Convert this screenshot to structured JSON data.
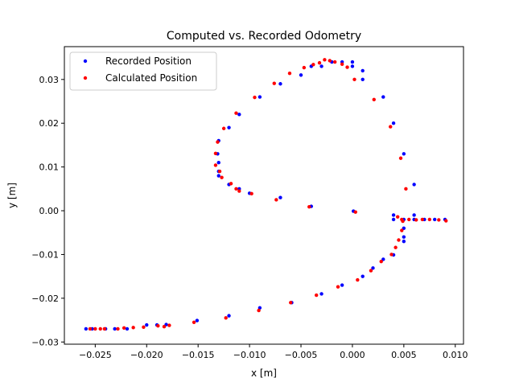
{
  "chart_data": {
    "type": "scatter",
    "title": "Computed vs. Recorded Odometry",
    "xlabel": "x [m]",
    "ylabel": "y [m]",
    "xlim": [
      -0.028,
      0.0108
    ],
    "ylim": [
      -0.0305,
      0.0375
    ],
    "xticks": [
      -0.025,
      -0.02,
      -0.015,
      -0.01,
      -0.005,
      0.0,
      0.005,
      0.01
    ],
    "xtick_labels": [
      "−0.025",
      "−0.020",
      "−0.015",
      "−0.010",
      "−0.005",
      "0.000",
      "0.005",
      "0.010"
    ],
    "yticks": [
      -0.03,
      -0.02,
      -0.01,
      0.0,
      0.01,
      0.02,
      0.03
    ],
    "ytick_labels": [
      "−0.03",
      "−0.02",
      "−0.01",
      "0.00",
      "0.01",
      "0.02",
      "0.03"
    ],
    "grid": false,
    "legend_position": "top-left",
    "series": [
      {
        "name": "Recorded Position",
        "color": "#0000ff",
        "points": [
          [
            -0.0259,
            -0.027
          ],
          [
            -0.0253,
            -0.027
          ],
          [
            -0.024,
            -0.027
          ],
          [
            -0.0231,
            -0.027
          ],
          [
            -0.0219,
            -0.027
          ],
          [
            -0.02,
            -0.0261
          ],
          [
            -0.019,
            -0.0261
          ],
          [
            -0.0181,
            -0.026
          ],
          [
            -0.0151,
            -0.0251
          ],
          [
            -0.012,
            -0.024
          ],
          [
            -0.009,
            -0.0222
          ],
          [
            -0.0059,
            -0.021
          ],
          [
            -0.003,
            -0.019
          ],
          [
            -0.001,
            -0.017
          ],
          [
            0.001,
            -0.015
          ],
          [
            0.002,
            -0.0131
          ],
          [
            0.003,
            -0.0111
          ],
          [
            0.004,
            -0.0101
          ],
          [
            0.005,
            -0.007
          ],
          [
            0.005,
            -0.006
          ],
          [
            0.005,
            -0.004
          ],
          [
            0.004,
            -0.002
          ],
          [
            0.004,
            -0.001
          ],
          [
            0.005,
            -0.002
          ],
          [
            0.006,
            -0.001
          ],
          [
            0.006,
            -0.002
          ],
          [
            0.007,
            -0.002
          ],
          [
            0.008,
            -0.002
          ],
          [
            0.009,
            -0.002
          ],
          [
            0.0001,
            -0.0001
          ],
          [
            -0.004,
            0.001
          ],
          [
            -0.007,
            0.003
          ],
          [
            -0.01,
            0.004
          ],
          [
            -0.011,
            0.005
          ],
          [
            -0.012,
            0.006
          ],
          [
            -0.013,
            0.008
          ],
          [
            -0.013,
            0.009
          ],
          [
            -0.013,
            0.011
          ],
          [
            -0.0131,
            0.013
          ],
          [
            -0.013,
            0.016
          ],
          [
            -0.012,
            0.019
          ],
          [
            -0.011,
            0.022
          ],
          [
            -0.009,
            0.026
          ],
          [
            -0.007,
            0.029
          ],
          [
            -0.005,
            0.031
          ],
          [
            -0.004,
            0.033
          ],
          [
            -0.003,
            0.033
          ],
          [
            -0.002,
            0.034
          ],
          [
            -0.001,
            0.034
          ],
          [
            0.0,
            0.034
          ],
          [
            0.0,
            0.033
          ],
          [
            0.001,
            0.032
          ],
          [
            0.001,
            0.03
          ],
          [
            0.003,
            0.026
          ],
          [
            0.004,
            0.02
          ],
          [
            0.005,
            0.013
          ],
          [
            0.006,
            0.006
          ]
        ]
      },
      {
        "name": "Calculated Position",
        "color": "#ff0000",
        "points": [
          [
            -0.0255,
            -0.027
          ],
          [
            -0.025,
            -0.027
          ],
          [
            -0.0245,
            -0.027
          ],
          [
            -0.0241,
            -0.027
          ],
          [
            -0.0228,
            -0.027
          ],
          [
            -0.0222,
            -0.0268
          ],
          [
            -0.0213,
            -0.0267
          ],
          [
            -0.0203,
            -0.0266
          ],
          [
            -0.0189,
            -0.0263
          ],
          [
            -0.0183,
            -0.0265
          ],
          [
            -0.0178,
            -0.0262
          ],
          [
            -0.0154,
            -0.0255
          ],
          [
            -0.0123,
            -0.0245
          ],
          [
            -0.0091,
            -0.0228
          ],
          [
            -0.006,
            -0.021
          ],
          [
            -0.0035,
            -0.0193
          ],
          [
            -0.0014,
            -0.0174
          ],
          [
            0.0005,
            -0.0158
          ],
          [
            0.0018,
            -0.0137
          ],
          [
            0.0028,
            -0.0116
          ],
          [
            0.0038,
            -0.01
          ],
          [
            0.0042,
            -0.0084
          ],
          [
            0.0045,
            -0.0067
          ],
          [
            0.0048,
            -0.0045
          ],
          [
            0.0049,
            -0.0024
          ],
          [
            0.0044,
            -0.0014
          ],
          [
            0.0048,
            -0.002
          ],
          [
            0.0055,
            -0.002
          ],
          [
            0.0062,
            -0.0021
          ],
          [
            0.0068,
            -0.002
          ],
          [
            0.0075,
            -0.002
          ],
          [
            0.0084,
            -0.0021
          ],
          [
            0.0091,
            -0.0023
          ],
          [
            0.0003,
            -0.0003
          ],
          [
            -0.0042,
            0.0009
          ],
          [
            -0.0074,
            0.0025
          ],
          [
            -0.0098,
            0.0039
          ],
          [
            -0.011,
            0.0045
          ],
          [
            -0.0113,
            0.005
          ],
          [
            -0.0118,
            0.0062
          ],
          [
            -0.0127,
            0.0076
          ],
          [
            -0.0129,
            0.009
          ],
          [
            -0.0133,
            0.0104
          ],
          [
            -0.0133,
            0.0131
          ],
          [
            -0.0131,
            0.0157
          ],
          [
            -0.0125,
            0.0188
          ],
          [
            -0.0113,
            0.0223
          ],
          [
            -0.0095,
            0.0259
          ],
          [
            -0.0076,
            0.0291
          ],
          [
            -0.0061,
            0.0314
          ],
          [
            -0.0047,
            0.0327
          ],
          [
            -0.0038,
            0.0334
          ],
          [
            -0.0032,
            0.0338
          ],
          [
            -0.0027,
            0.0345
          ],
          [
            -0.0022,
            0.0343
          ],
          [
            -0.0017,
            0.034
          ],
          [
            -0.001,
            0.0335
          ],
          [
            -0.0005,
            0.0328
          ],
          [
            0.0002,
            0.03
          ],
          [
            0.0021,
            0.0254
          ],
          [
            0.0037,
            0.0192
          ],
          [
            0.0047,
            0.012
          ],
          [
            0.0052,
            0.005
          ]
        ]
      }
    ]
  }
}
